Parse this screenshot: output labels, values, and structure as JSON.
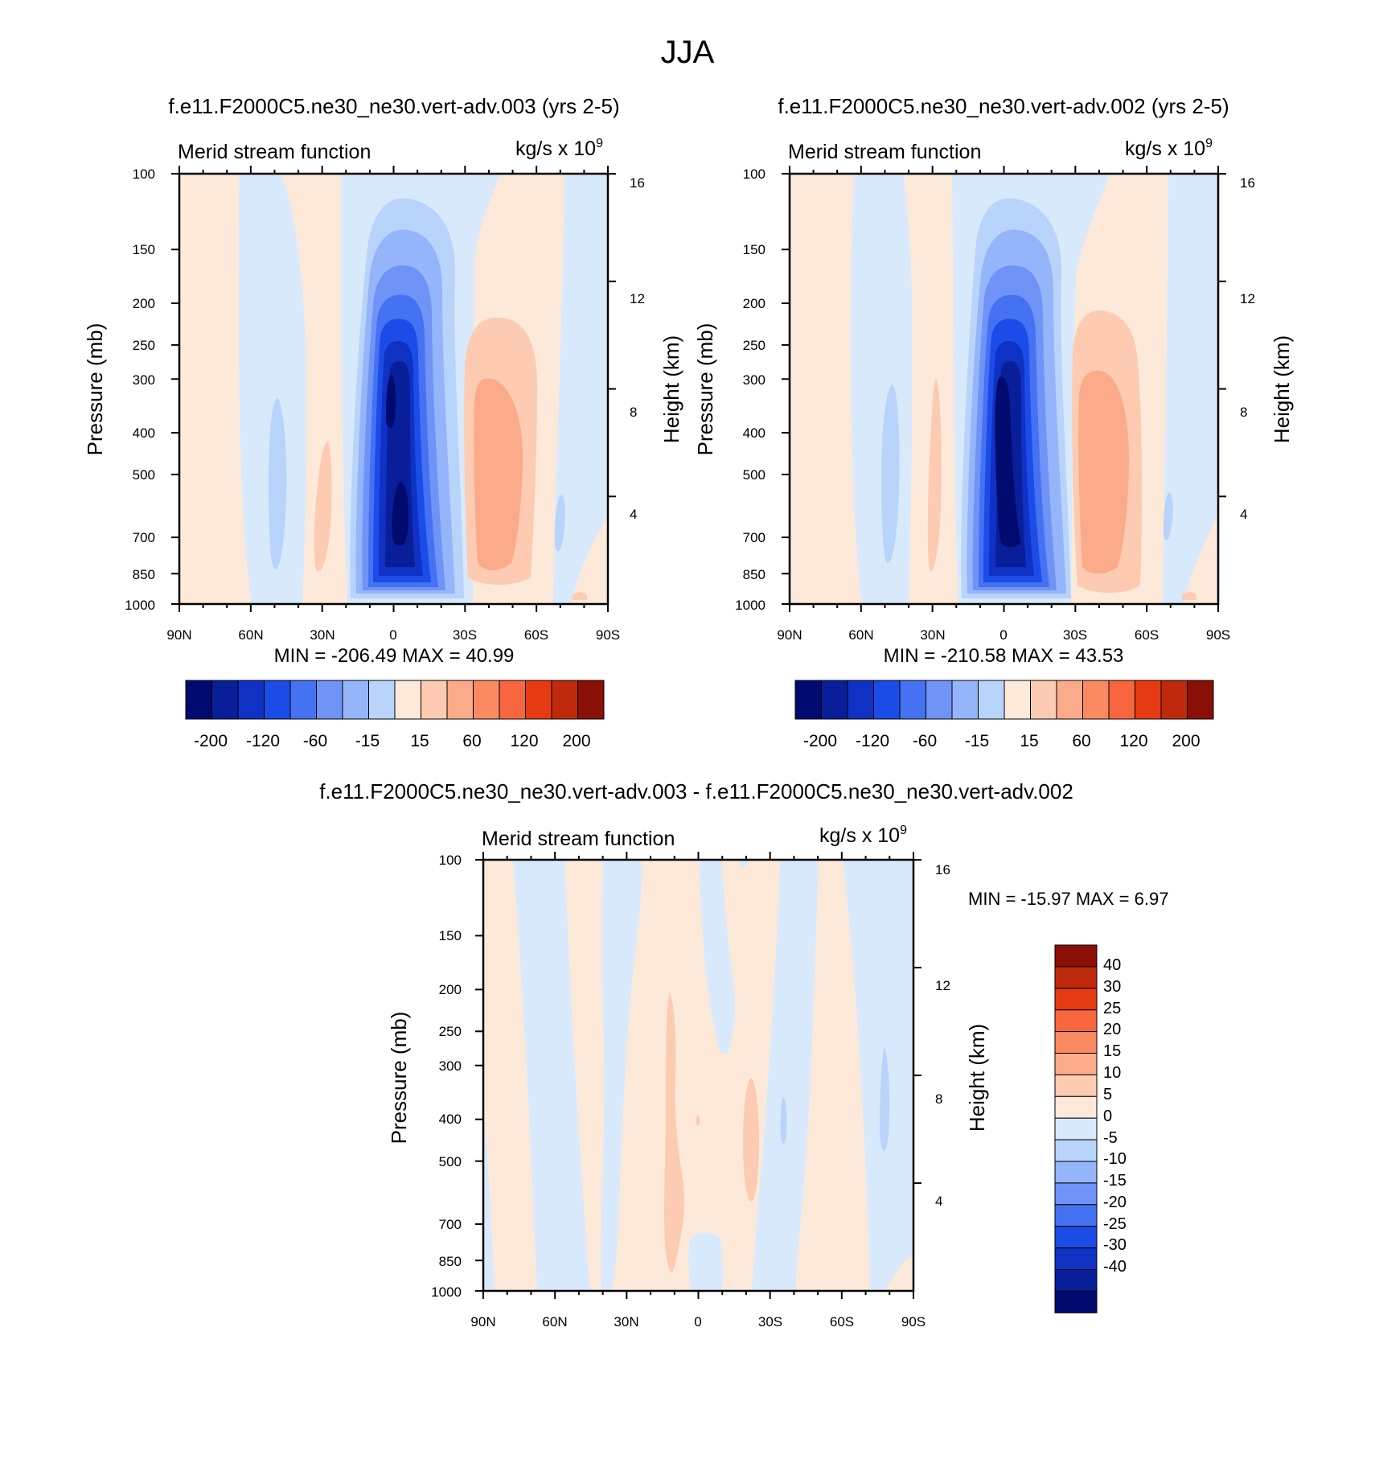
{
  "figure": {
    "title": "JJA"
  },
  "colors": {
    "pos": [
      "#fde9da",
      "#fccbb2",
      "#fbab8a",
      "#f98a62",
      "#f7663e",
      "#e63b12",
      "#c02a0c",
      "#8a0f06"
    ],
    "neg": [
      "#d8e9fb",
      "#b9d4fb",
      "#94b5fa",
      "#6f93f6",
      "#4572f2",
      "#1c4ce8",
      "#0f31c4",
      "#081f99",
      "#010b6f"
    ]
  },
  "panels": [
    {
      "id": "p1",
      "title": "f.e11.F2000C5.ne30_ne30.vert-adv.003 (yrs 2-5)",
      "left_string": "Merid stream function",
      "right_string": "kg/s x 10",
      "right_string_exp": "9",
      "y_label": "Pressure (mb)",
      "y2_label": "Height (km)",
      "x_ticks": [
        "90N",
        "60N",
        "30N",
        "0",
        "30S",
        "60S",
        "90S"
      ],
      "y_ticks": [
        "100",
        "150",
        "200",
        "250",
        "300",
        "400",
        "500",
        "700",
        "850",
        "1000"
      ],
      "y2_ticks": [
        "16",
        "12",
        "8",
        "4"
      ],
      "min_max": "MIN = -206.49  MAX =  40.99",
      "colorbar_labels": [
        "-200",
        "-120",
        "-60",
        "-15",
        "15",
        "60",
        "120",
        "200"
      ]
    },
    {
      "id": "p2",
      "title": "f.e11.F2000C5.ne30_ne30.vert-adv.002 (yrs 2-5)",
      "left_string": "Merid stream function",
      "right_string": "kg/s x 10",
      "right_string_exp": "9",
      "y_label": "Pressure (mb)",
      "y2_label": "Height (km)",
      "x_ticks": [
        "90N",
        "60N",
        "30N",
        "0",
        "30S",
        "60S",
        "90S"
      ],
      "y_ticks": [
        "100",
        "150",
        "200",
        "250",
        "300",
        "400",
        "500",
        "700",
        "850",
        "1000"
      ],
      "y2_ticks": [
        "16",
        "12",
        "8",
        "4"
      ],
      "min_max": "MIN = -210.58  MAX =  43.53",
      "colorbar_labels": [
        "-200",
        "-120",
        "-60",
        "-15",
        "15",
        "60",
        "120",
        "200"
      ]
    },
    {
      "id": "p3",
      "title": "f.e11.F2000C5.ne30_ne30.vert-adv.003 - f.e11.F2000C5.ne30_ne30.vert-adv.002",
      "left_string": "Merid stream function",
      "right_string": "kg/s x 10",
      "right_string_exp": "9",
      "y_label": "Pressure (mb)",
      "y2_label": "Height (km)",
      "x_ticks": [
        "90N",
        "60N",
        "30N",
        "0",
        "30S",
        "60S",
        "90S"
      ],
      "y_ticks": [
        "100",
        "150",
        "200",
        "250",
        "300",
        "400",
        "500",
        "700",
        "850",
        "1000"
      ],
      "y2_ticks": [
        "16",
        "12",
        "8",
        "4"
      ],
      "min_max": "MIN = -15.97  MAX =   6.97",
      "colorbar_labels": [
        "40",
        "30",
        "25",
        "20",
        "15",
        "10",
        "5",
        "0",
        "-5",
        "-10",
        "-15",
        "-20",
        "-25",
        "-30",
        "-40"
      ]
    }
  ],
  "chart_data": [
    {
      "type": "heatmap",
      "title": "f.e11.F2000C5.ne30_ne30.vert-adv.003 (yrs 2-5)",
      "xlabel": "",
      "ylabel": "Pressure (mb)",
      "y2label": "Height (km)",
      "x_ticks": [
        "90N",
        "60N",
        "30N",
        "0",
        "30S",
        "60S",
        "90S"
      ],
      "y_ticks": [
        100,
        150,
        200,
        250,
        300,
        400,
        500,
        700,
        850,
        1000
      ],
      "y_scale": "log",
      "y_inverted": true,
      "xlim": [
        "90N",
        "90S"
      ],
      "ylim": [
        1000,
        100
      ],
      "min": -206.49,
      "max": 40.99,
      "levels": [
        -200,
        -160,
        -120,
        -90,
        -60,
        -30,
        -15,
        -5,
        0,
        5,
        15,
        30,
        60,
        90,
        120,
        160,
        200
      ],
      "features": [
        {
          "kind": "minimum",
          "near_lat": "5N",
          "near_pressure_mb": 600,
          "approx_value": -206.49
        },
        {
          "kind": "maximum",
          "near_lat": "40S",
          "near_pressure_mb": 500,
          "approx_value": 40.99
        }
      ]
    },
    {
      "type": "heatmap",
      "title": "f.e11.F2000C5.ne30_ne30.vert-adv.002 (yrs 2-5)",
      "xlabel": "",
      "ylabel": "Pressure (mb)",
      "y2label": "Height (km)",
      "x_ticks": [
        "90N",
        "60N",
        "30N",
        "0",
        "30S",
        "60S",
        "90S"
      ],
      "y_ticks": [
        100,
        150,
        200,
        250,
        300,
        400,
        500,
        700,
        850,
        1000
      ],
      "y_scale": "log",
      "y_inverted": true,
      "xlim": [
        "90N",
        "90S"
      ],
      "ylim": [
        1000,
        100
      ],
      "min": -210.58,
      "max": 43.53,
      "levels": [
        -200,
        -160,
        -120,
        -90,
        -60,
        -30,
        -15,
        -5,
        0,
        5,
        15,
        30,
        60,
        90,
        120,
        160,
        200
      ],
      "features": [
        {
          "kind": "minimum",
          "near_lat": "5N",
          "near_pressure_mb": 600,
          "approx_value": -210.58
        },
        {
          "kind": "maximum",
          "near_lat": "40S",
          "near_pressure_mb": 450,
          "approx_value": 43.53
        }
      ]
    },
    {
      "type": "heatmap",
      "title": "f.e11.F2000C5.ne30_ne30.vert-adv.003 - f.e11.F2000C5.ne30_ne30.vert-adv.002",
      "xlabel": "",
      "ylabel": "Pressure (mb)",
      "y2label": "Height (km)",
      "x_ticks": [
        "90N",
        "60N",
        "30N",
        "0",
        "30S",
        "60S",
        "90S"
      ],
      "y_ticks": [
        100,
        150,
        200,
        250,
        300,
        400,
        500,
        700,
        850,
        1000
      ],
      "y_scale": "log",
      "y_inverted": true,
      "xlim": [
        "90N",
        "90S"
      ],
      "ylim": [
        1000,
        100
      ],
      "min": -15.97,
      "max": 6.97,
      "levels": [
        -40,
        -30,
        -25,
        -20,
        -15,
        -10,
        -5,
        0,
        5,
        10,
        15,
        20,
        25,
        30,
        40
      ]
    }
  ]
}
